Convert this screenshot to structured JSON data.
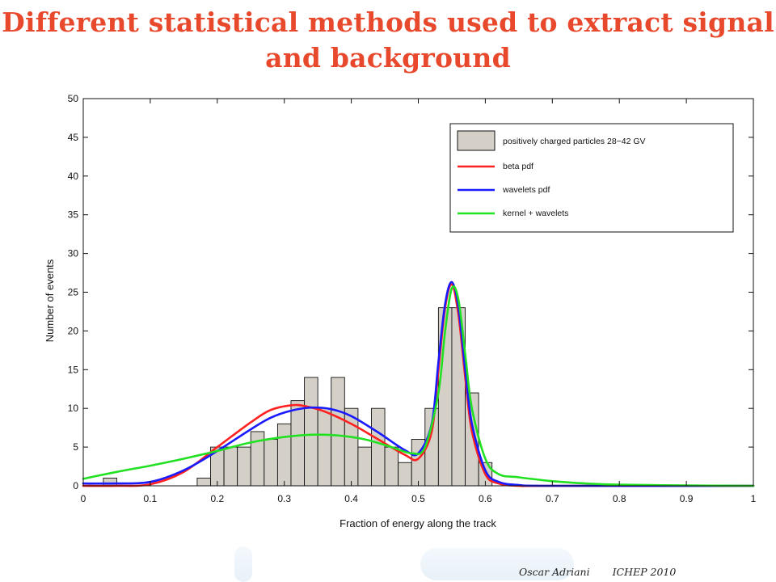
{
  "slide": {
    "title": "Different statistical methods used to extract signal and background",
    "footer_author": "Oscar Adriani",
    "footer_event": "ICHEP 2010"
  },
  "colors": {
    "title": "#e8482c",
    "histogram_fill": "#d4d0c8",
    "beta": "#ff2020",
    "wavelets": "#1a1aff",
    "kernel": "#22e022"
  },
  "chart_data": {
    "type": "bar",
    "title": "",
    "xlabel": "Fraction of energy along the track",
    "ylabel": "Number of events",
    "xlim": [
      0,
      1
    ],
    "ylim": [
      0,
      50
    ],
    "xticks": [
      0,
      0.1,
      0.2,
      0.3,
      0.4,
      0.5,
      0.6,
      0.7,
      0.8,
      0.9,
      1
    ],
    "xtick_labels": [
      "0",
      "0.1",
      "0.2",
      "0.3",
      "0.4",
      "0.5",
      "0.6",
      "0.7",
      "0.8",
      "0.9",
      "1"
    ],
    "yticks": [
      0,
      5,
      10,
      15,
      20,
      25,
      30,
      35,
      40,
      45,
      50
    ],
    "ytick_labels": [
      "0",
      "5",
      "10",
      "15",
      "20",
      "25",
      "30",
      "35",
      "40",
      "45",
      "50"
    ],
    "legend_position": "top-right",
    "histogram": {
      "name": "positively charged particles 28−42 GV",
      "bin_width": 0.02,
      "bin_edges_start": [
        0.03,
        0.17,
        0.19,
        0.21,
        0.23,
        0.25,
        0.27,
        0.29,
        0.31,
        0.33,
        0.35,
        0.37,
        0.39,
        0.41,
        0.43,
        0.45,
        0.47,
        0.49,
        0.51,
        0.53,
        0.55,
        0.57,
        0.59
      ],
      "counts": [
        1,
        1,
        5,
        5,
        5,
        7,
        6,
        8,
        11,
        14,
        10,
        14,
        10,
        5,
        10,
        5,
        3,
        6,
        10,
        23,
        23,
        12,
        3
      ]
    },
    "series": [
      {
        "name": "beta pdf",
        "x": [
          0,
          0.05,
          0.1,
          0.15,
          0.2,
          0.25,
          0.28,
          0.31,
          0.33,
          0.36,
          0.4,
          0.44,
          0.48,
          0.5,
          0.52,
          0.53,
          0.54,
          0.55,
          0.56,
          0.57,
          0.58,
          0.6,
          0.62,
          0.65,
          0.7,
          1
        ],
        "y": [
          0,
          0,
          0.2,
          1.8,
          5,
          8.2,
          9.8,
          10.4,
          10.3,
          9.6,
          8,
          6,
          4,
          3.5,
          7,
          15,
          23,
          26,
          22,
          14,
          7,
          1.5,
          0.3,
          0,
          0,
          0
        ]
      },
      {
        "name": "wavelets pdf",
        "x": [
          0,
          0.05,
          0.1,
          0.15,
          0.2,
          0.25,
          0.28,
          0.31,
          0.34,
          0.37,
          0.4,
          0.44,
          0.48,
          0.5,
          0.52,
          0.53,
          0.54,
          0.55,
          0.56,
          0.57,
          0.58,
          0.6,
          0.62,
          0.65,
          0.7,
          1
        ],
        "y": [
          0.3,
          0.3,
          0.5,
          2,
          4.5,
          7.3,
          8.8,
          9.7,
          10.1,
          9.9,
          9,
          6.9,
          4.6,
          4.2,
          8,
          16,
          23.5,
          26.3,
          23,
          15,
          8,
          2,
          0.5,
          0.1,
          0,
          0
        ]
      },
      {
        "name": "kernel + wavelets",
        "x": [
          0,
          0.05,
          0.1,
          0.15,
          0.2,
          0.25,
          0.3,
          0.34,
          0.38,
          0.42,
          0.46,
          0.49,
          0.51,
          0.53,
          0.54,
          0.55,
          0.56,
          0.57,
          0.58,
          0.6,
          0.62,
          0.65,
          0.7,
          0.75,
          0.8,
          0.9,
          1
        ],
        "y": [
          0.9,
          1.8,
          2.6,
          3.5,
          4.5,
          5.6,
          6.3,
          6.6,
          6.5,
          6,
          5,
          4.2,
          5,
          12,
          20,
          25.5,
          24,
          17,
          10,
          3.5,
          1.5,
          1.1,
          0.6,
          0.3,
          0.15,
          0.05,
          0
        ]
      }
    ]
  }
}
